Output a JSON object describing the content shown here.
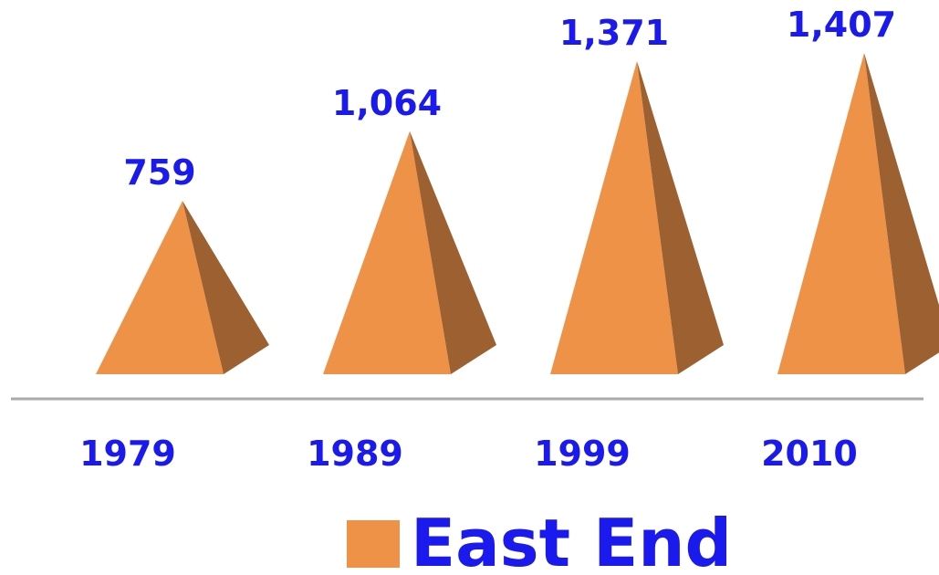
{
  "chart_data": {
    "type": "pyramid",
    "categories": [
      "1979",
      "1989",
      "1999",
      "2010"
    ],
    "series": [
      {
        "name": "East End",
        "color": "#ee9248",
        "values": [
          759,
          1064,
          1371,
          1407
        ],
        "value_labels": [
          "759",
          "1,064",
          "1,371",
          "1,407"
        ]
      }
    ]
  }
}
